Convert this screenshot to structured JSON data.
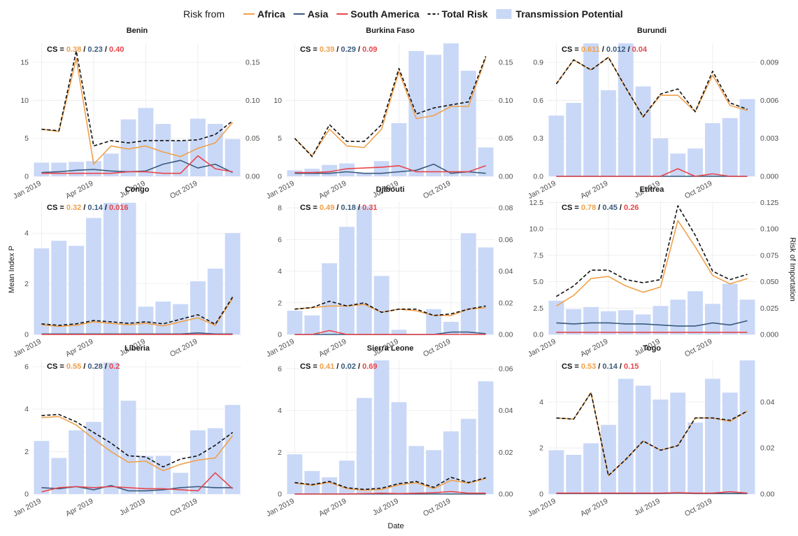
{
  "legend": {
    "prefix": "Risk from",
    "items": [
      {
        "label": "Africa",
        "color": "#F0A04B",
        "kind": "line"
      },
      {
        "label": "Asia",
        "color": "#3B5B7E",
        "kind": "line"
      },
      {
        "label": "South America",
        "color": "#E8454B",
        "kind": "line"
      },
      {
        "label": "Total Risk",
        "color": "#111111",
        "kind": "dash"
      },
      {
        "label": "Transmission Potential",
        "color": "#C9D8F7",
        "kind": "bar"
      }
    ]
  },
  "axis_labels": {
    "x": "Date",
    "y_left": "Mean Index P",
    "y_right": "Risk of Importation"
  },
  "x_ticks": [
    "Jan 2019",
    "Apr 2019",
    "Jul 2019",
    "Oct 2019"
  ],
  "chart_data": [
    {
      "type": "bar+line",
      "title": "Benin",
      "cs": {
        "prefix": "CS = ",
        "africa": "0.38",
        "asia": "0.23",
        "south_america": "0.40"
      },
      "left_ylim": [
        0,
        17.5
      ],
      "left_ticks": [
        "0",
        "5",
        "10",
        "15"
      ],
      "left_tick_values": [
        0,
        5,
        10,
        15
      ],
      "right_ylim": [
        0,
        0.175
      ],
      "right_ticks": [
        "0.00",
        "0.05",
        "0.10",
        "0.15"
      ],
      "right_tick_values": [
        0,
        0.05,
        0.1,
        0.15
      ],
      "bars_index_p": [
        1.8,
        1.8,
        1.9,
        2.0,
        3.0,
        7.5,
        9.0,
        6.9,
        4.7,
        7.6,
        6.9,
        4.9
      ],
      "risk_total": [
        0.062,
        0.06,
        0.165,
        0.04,
        0.047,
        0.044,
        0.047,
        0.047,
        0.047,
        0.048,
        0.055,
        0.073
      ],
      "risk_africa": [
        0.062,
        0.059,
        0.155,
        0.016,
        0.04,
        0.036,
        0.04,
        0.032,
        0.026,
        0.037,
        0.044,
        0.071
      ],
      "risk_asia": [
        0.005,
        0.006,
        0.008,
        0.009,
        0.007,
        0.006,
        0.007,
        0.016,
        0.021,
        0.011,
        0.016,
        0.005
      ],
      "risk_south_america": [
        0.004,
        0.004,
        0.004,
        0.004,
        0.004,
        0.006,
        0.006,
        0.004,
        0.004,
        0.027,
        0.01,
        0.006
      ]
    },
    {
      "type": "bar+line",
      "title": "Burkina Faso",
      "cs": {
        "prefix": "CS = ",
        "africa": "0.39",
        "asia": "0.29",
        "south_america": "0.09"
      },
      "left_ylim": [
        0,
        17.5
      ],
      "left_ticks": [
        "0",
        "5",
        "10"
      ],
      "left_tick_values": [
        0,
        5,
        10
      ],
      "right_ylim": [
        0,
        0.175
      ],
      "right_ticks": [
        "0.00",
        "0.05",
        "0.10",
        "0.15"
      ],
      "right_tick_values": [
        0,
        0.05,
        0.1,
        0.15
      ],
      "bars_index_p": [
        0.8,
        1.0,
        1.5,
        1.7,
        0.4,
        2.0,
        7.0,
        16.5,
        16.0,
        17.5,
        13.9,
        3.8
      ],
      "risk_total": [
        0.05,
        0.026,
        0.068,
        0.046,
        0.046,
        0.068,
        0.142,
        0.082,
        0.09,
        0.094,
        0.098,
        0.158
      ],
      "risk_africa": [
        0.05,
        0.027,
        0.062,
        0.04,
        0.038,
        0.062,
        0.138,
        0.076,
        0.08,
        0.092,
        0.092,
        0.156
      ],
      "risk_asia": [
        0.004,
        0.004,
        0.004,
        0.006,
        0.004,
        0.004,
        0.006,
        0.008,
        0.016,
        0.004,
        0.006,
        0.004
      ],
      "risk_south_america": [
        0.005,
        0.005,
        0.006,
        0.01,
        0.011,
        0.012,
        0.014,
        0.006,
        0.006,
        0.006,
        0.006,
        0.014
      ]
    },
    {
      "type": "bar+line",
      "title": "Burundi",
      "cs": {
        "prefix": "CS = ",
        "africa": "0.611",
        "asia": "0.012",
        "south_america": "0.04"
      },
      "left_ylim": [
        0,
        1.05
      ],
      "left_ticks": [
        "0.0",
        "0.3",
        "0.6",
        "0.9"
      ],
      "left_tick_values": [
        0,
        0.3,
        0.6,
        0.9
      ],
      "right_ylim": [
        0,
        0.0105
      ],
      "right_ticks": [
        "0.000",
        "0.003",
        "0.006",
        "0.009"
      ],
      "right_tick_values": [
        0,
        0.003,
        0.006,
        0.009
      ],
      "bars_index_p": [
        0.48,
        0.58,
        1.05,
        0.68,
        1.05,
        0.71,
        0.3,
        0.18,
        0.22,
        0.42,
        0.46,
        0.61
      ],
      "risk_total": [
        0.0073,
        0.0092,
        0.0084,
        0.0094,
        0.007,
        0.0047,
        0.0065,
        0.0069,
        0.0051,
        0.0083,
        0.0058,
        0.0053
      ],
      "risk_africa": [
        0.0073,
        0.0092,
        0.0084,
        0.0094,
        0.007,
        0.0047,
        0.0064,
        0.0064,
        0.0051,
        0.008,
        0.0056,
        0.0052
      ],
      "risk_asia": [
        0,
        0,
        0,
        0,
        0,
        0,
        0,
        0,
        0,
        0,
        0,
        0
      ],
      "risk_south_america": [
        0,
        0,
        0,
        0,
        0,
        0,
        0,
        0.0006,
        0,
        0.0002,
        0,
        0
      ]
    },
    {
      "type": "bar+line",
      "title": "Congo",
      "cs": {
        "prefix": "CS = ",
        "africa": "0.32",
        "asia": "0.14",
        "south_america": "0.016"
      },
      "left_ylim": [
        0,
        5.25
      ],
      "left_ticks": [
        "0",
        "2",
        "4"
      ],
      "left_tick_values": [
        0,
        2,
        4
      ],
      "right_ylim": [
        0,
        0.0525
      ],
      "right_ticks": [],
      "right_tick_values": [],
      "bars_index_p": [
        3.4,
        3.7,
        3.5,
        4.6,
        5.2,
        5.2,
        1.1,
        1.3,
        1.2,
        2.1,
        2.6,
        4.0
      ],
      "risk_total": [
        0.0042,
        0.0036,
        0.0042,
        0.0055,
        0.005,
        0.0044,
        0.005,
        0.0042,
        0.006,
        0.0078,
        0.004,
        0.0148
      ],
      "risk_africa": [
        0.0038,
        0.0032,
        0.0036,
        0.005,
        0.0044,
        0.0038,
        0.0044,
        0.0034,
        0.005,
        0.0066,
        0.0036,
        0.0142
      ],
      "risk_asia": [
        0.0002,
        0.0002,
        0.0002,
        0.0002,
        0.0002,
        0.0002,
        0.0002,
        0.0002,
        0.0002,
        0.0006,
        0.0002,
        0.0002
      ],
      "risk_south_america": [
        0,
        0,
        0,
        0,
        0,
        0,
        0,
        0,
        0,
        0,
        0,
        0
      ]
    },
    {
      "type": "bar+line",
      "title": "Djibouti",
      "cs": {
        "prefix": "CS = ",
        "africa": "0.49",
        "asia": "0.18",
        "south_america": "0.31"
      },
      "left_ylim": [
        0,
        8.4
      ],
      "left_ticks": [
        "0",
        "2",
        "4",
        "6",
        "8"
      ],
      "left_tick_values": [
        0,
        2,
        4,
        6,
        8
      ],
      "right_ylim": [
        0,
        0.084
      ],
      "right_ticks": [
        "0.00",
        "0.02",
        "0.04",
        "0.06",
        "0.08"
      ],
      "right_tick_values": [
        0,
        0.02,
        0.04,
        0.06,
        0.08
      ],
      "bars_index_p": [
        1.5,
        1.2,
        4.5,
        6.8,
        8.1,
        3.7,
        0.3,
        0,
        1.6,
        0.8,
        6.4,
        5.5
      ],
      "risk_total": [
        0.016,
        0.017,
        0.021,
        0.018,
        0.02,
        0.014,
        0.016,
        0.016,
        0.012,
        0.013,
        0.016,
        0.018
      ],
      "risk_africa": [
        0.016,
        0.017,
        0.018,
        0.018,
        0.019,
        0.014,
        0.016,
        0.015,
        0.012,
        0.012,
        0.016,
        0.017
      ],
      "risk_asia": [
        0,
        0,
        0,
        0,
        0,
        0,
        0,
        0,
        0,
        0.0015,
        0.0015,
        0.0005
      ],
      "risk_south_america": [
        0,
        0,
        0.0025,
        0,
        0,
        0,
        0,
        0,
        0,
        0,
        0,
        0
      ]
    },
    {
      "type": "bar+line",
      "title": "Eritrea",
      "cs": {
        "prefix": "CS = ",
        "africa": "0.78",
        "asia": "0.45",
        "south_america": "0.26"
      },
      "left_ylim": [
        0,
        12.6
      ],
      "left_ticks": [
        "0.0",
        "2.5",
        "5.0",
        "7.5",
        "10.0",
        "12.5"
      ],
      "left_tick_values": [
        0,
        2.5,
        5,
        7.5,
        10,
        12.5
      ],
      "right_ylim": [
        0,
        0.126
      ],
      "right_ticks": [
        "0.000",
        "0.025",
        "0.050",
        "0.075",
        "0.100",
        "0.125"
      ],
      "right_tick_values": [
        0,
        0.025,
        0.05,
        0.075,
        0.1,
        0.125
      ],
      "bars_index_p": [
        3.2,
        2.4,
        2.6,
        2.2,
        2.3,
        1.9,
        2.7,
        3.3,
        4.1,
        2.9,
        4.8,
        3.3
      ],
      "risk_total": [
        0.036,
        0.046,
        0.061,
        0.061,
        0.052,
        0.049,
        0.052,
        0.122,
        0.094,
        0.06,
        0.052,
        0.057
      ],
      "risk_africa": [
        0.027,
        0.037,
        0.053,
        0.055,
        0.046,
        0.04,
        0.045,
        0.108,
        0.083,
        0.056,
        0.048,
        0.053
      ],
      "risk_asia": [
        0.011,
        0.01,
        0.011,
        0.011,
        0.01,
        0.01,
        0.009,
        0.008,
        0.008,
        0.011,
        0.009,
        0.013
      ],
      "risk_south_america": [
        0.002,
        0.002,
        0.002,
        0.002,
        0.002,
        0.002,
        0.002,
        0.002,
        0.002,
        0.002,
        0.002,
        0.002
      ]
    },
    {
      "type": "bar+line",
      "title": "Liberia",
      "cs": {
        "prefix": "CS = ",
        "africa": "0.55",
        "asia": "0.28",
        "south_america": "0.2"
      },
      "left_ylim": [
        0,
        6.3
      ],
      "left_ticks": [
        "0",
        "2",
        "4",
        "6"
      ],
      "left_tick_values": [
        0,
        2,
        4,
        6
      ],
      "right_ylim": [
        0,
        0.063
      ],
      "right_ticks": [],
      "right_tick_values": [],
      "bars_index_p": [
        2.5,
        1.7,
        3.0,
        3.4,
        6.2,
        4.4,
        1.8,
        1.8,
        1.0,
        3.0,
        3.1,
        4.2
      ],
      "risk_total": [
        0.037,
        0.0375,
        0.034,
        0.029,
        0.024,
        0.018,
        0.0175,
        0.0128,
        0.0165,
        0.018,
        0.023,
        0.029
      ],
      "risk_africa": [
        0.036,
        0.0365,
        0.0325,
        0.026,
        0.02,
        0.015,
        0.0155,
        0.011,
        0.014,
        0.016,
        0.017,
        0.0275
      ],
      "risk_asia": [
        0.003,
        0.0025,
        0.0035,
        0.002,
        0.004,
        0.0015,
        0.0015,
        0.002,
        0.003,
        0.0035,
        0.003,
        0.003
      ],
      "risk_south_america": [
        0.001,
        0.003,
        0.0035,
        0.003,
        0.0035,
        0.003,
        0.0025,
        0.0025,
        0.002,
        0.0015,
        0.01,
        0.0025
      ]
    },
    {
      "type": "bar+line",
      "title": "Sierra Leone",
      "cs": {
        "prefix": "CS = ",
        "africa": "0.41",
        "asia": "0.02",
        "south_america": "0.69"
      },
      "left_ylim": [
        0,
        6.4
      ],
      "left_ticks": [
        "0",
        "2",
        "4",
        "6"
      ],
      "left_tick_values": [
        0,
        2,
        4,
        6
      ],
      "right_ylim": [
        0,
        0.064
      ],
      "right_ticks": [
        "0.00",
        "0.02",
        "0.04",
        "0.06"
      ],
      "right_tick_values": [
        0,
        0.02,
        0.04,
        0.06
      ],
      "bars_index_p": [
        1.9,
        1.1,
        0.8,
        1.6,
        4.6,
        6.4,
        4.4,
        2.3,
        2.1,
        3.0,
        3.6,
        5.4
      ],
      "risk_total": [
        0.0055,
        0.0045,
        0.006,
        0.003,
        0.0022,
        0.0028,
        0.005,
        0.006,
        0.0032,
        0.008,
        0.0055,
        0.0078
      ],
      "risk_africa": [
        0.0052,
        0.0042,
        0.0056,
        0.0026,
        0.0018,
        0.0022,
        0.0044,
        0.0054,
        0.0026,
        0.0066,
        0.0052,
        0.0074
      ],
      "risk_asia": [
        0,
        0,
        0,
        0,
        0,
        0,
        0,
        0,
        0,
        0,
        0,
        0
      ],
      "risk_south_america": [
        0,
        0,
        0,
        0,
        0.0002,
        0.0004,
        0.0002,
        0.0004,
        0.0006,
        0.0012,
        0.0004,
        0.0004
      ]
    },
    {
      "type": "bar+line",
      "title": "Togo",
      "cs": {
        "prefix": "CS = ",
        "africa": "0.53",
        "asia": "0.14",
        "south_america": "0.15"
      },
      "left_ylim": [
        0,
        5.8
      ],
      "left_ticks": [
        "0",
        "2",
        "4"
      ],
      "left_tick_values": [
        0,
        2,
        4
      ],
      "right_ylim": [
        0,
        0.058
      ],
      "right_ticks": [
        "0.00",
        "0.02",
        "0.04"
      ],
      "right_tick_values": [
        0,
        0.02,
        0.04
      ],
      "bars_index_p": [
        1.9,
        1.7,
        2.2,
        3.0,
        5.0,
        4.7,
        4.1,
        4.4,
        3.1,
        5.0,
        4.4,
        5.8
      ],
      "risk_total": [
        0.033,
        0.0325,
        0.044,
        0.008,
        0.015,
        0.023,
        0.019,
        0.021,
        0.033,
        0.033,
        0.032,
        0.036
      ],
      "risk_africa": [
        0.033,
        0.0325,
        0.044,
        0.008,
        0.015,
        0.023,
        0.019,
        0.021,
        0.033,
        0.033,
        0.0315,
        0.036
      ],
      "risk_asia": [
        0.0002,
        0.0002,
        0.0002,
        0.0002,
        0.0002,
        0.0002,
        0.0002,
        0.0004,
        0.0002,
        0.0002,
        0.0002,
        0.0002
      ],
      "risk_south_america": [
        0.0004,
        0.0004,
        0.0004,
        0.0004,
        0.0004,
        0.0004,
        0.0004,
        0.0006,
        0.0004,
        0.0004,
        0.001,
        0.0004
      ]
    }
  ]
}
